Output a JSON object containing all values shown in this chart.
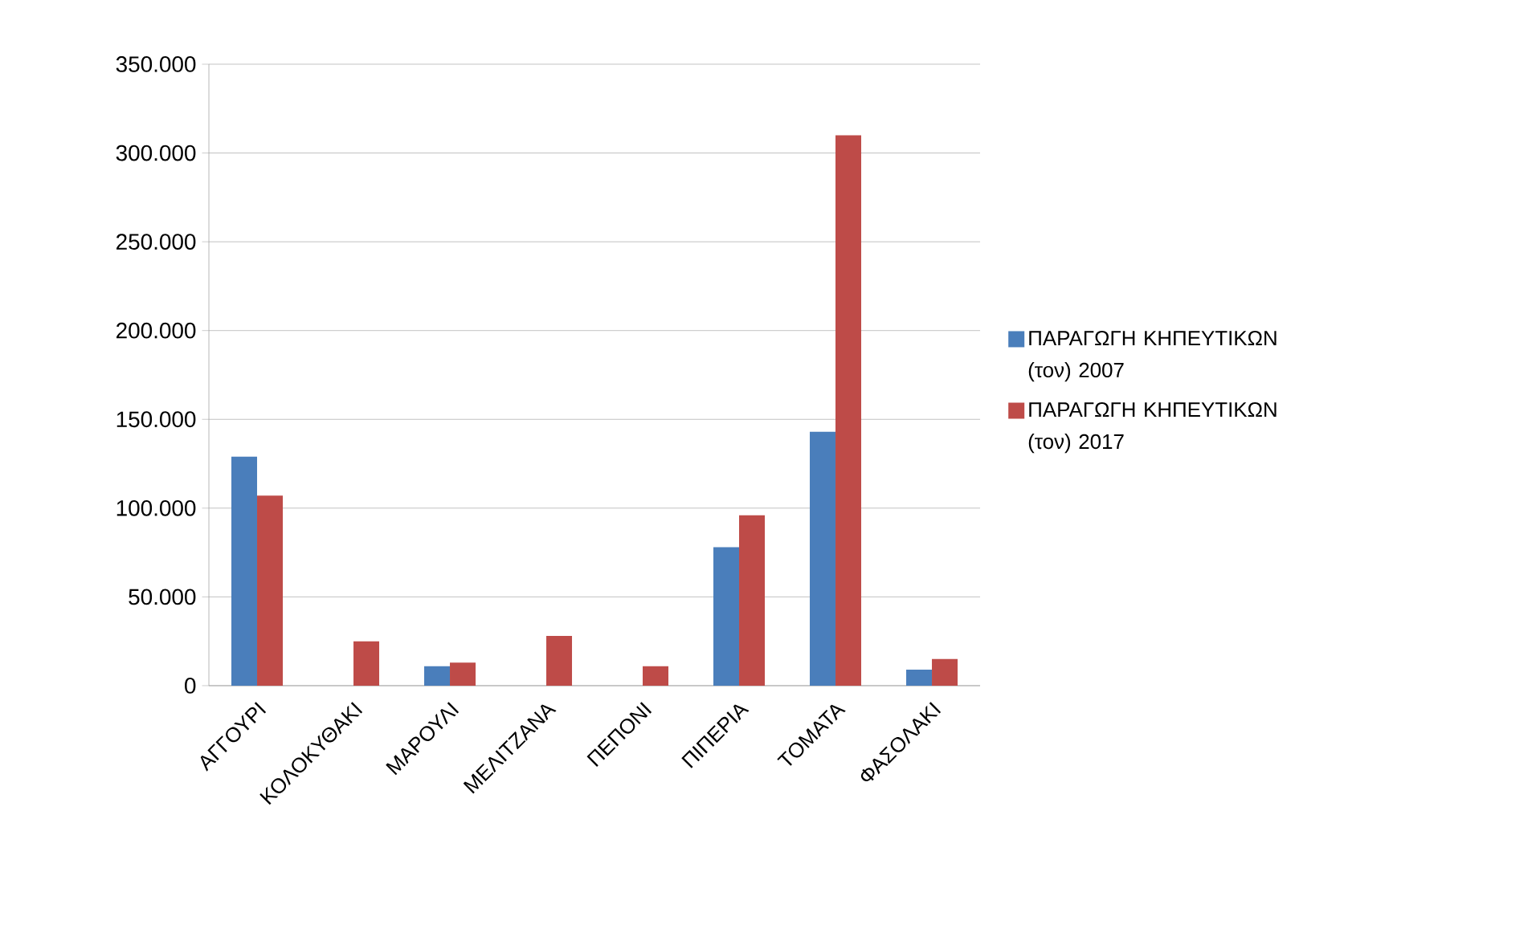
{
  "chart_data": {
    "type": "bar",
    "categories": [
      "ΑΓΓΟΥΡΙ",
      "ΚΟΛΟΚΥΘΑΚΙ",
      "ΜΑΡΟΥΛΙ",
      "ΜΕΛΙΤΖΑΝΑ",
      "ΠΕΠΟΝΙ",
      "ΠΙΠΕΡΙΑ",
      "ΤΟΜΑΤΑ",
      "ΦΑΣΟΛΑΚΙ"
    ],
    "series": [
      {
        "name": "ΠΑΡΑΓΩΓΗ ΚΗΠΕΥΤΙΚΩΝ (τον) 2007",
        "color": "#4a7ebb",
        "values": [
          129000,
          null,
          11000,
          null,
          null,
          78000,
          143000,
          9000
        ]
      },
      {
        "name": "ΠΑΡΑΓΩΓΗ ΚΗΠΕΥΤΙΚΩΝ (τον) 2017",
        "color": "#be4b48",
        "values": [
          107000,
          25000,
          13000,
          28000,
          11000,
          96000,
          310000,
          15000
        ]
      }
    ],
    "ylim": [
      0,
      350000
    ],
    "yticks": [
      0,
      {
        "value": 50000,
        "label": "50.000"
      },
      {
        "value": 100000,
        "label": "100.000"
      },
      {
        "value": 150000,
        "label": "150.000"
      },
      {
        "value": 200000,
        "label": "200.000"
      },
      {
        "value": 250000,
        "label": "250.000"
      },
      {
        "value": 300000,
        "label": "300.000"
      },
      {
        "value": 350000,
        "label": "350.000"
      }
    ],
    "grid": "y",
    "legend": "right"
  }
}
